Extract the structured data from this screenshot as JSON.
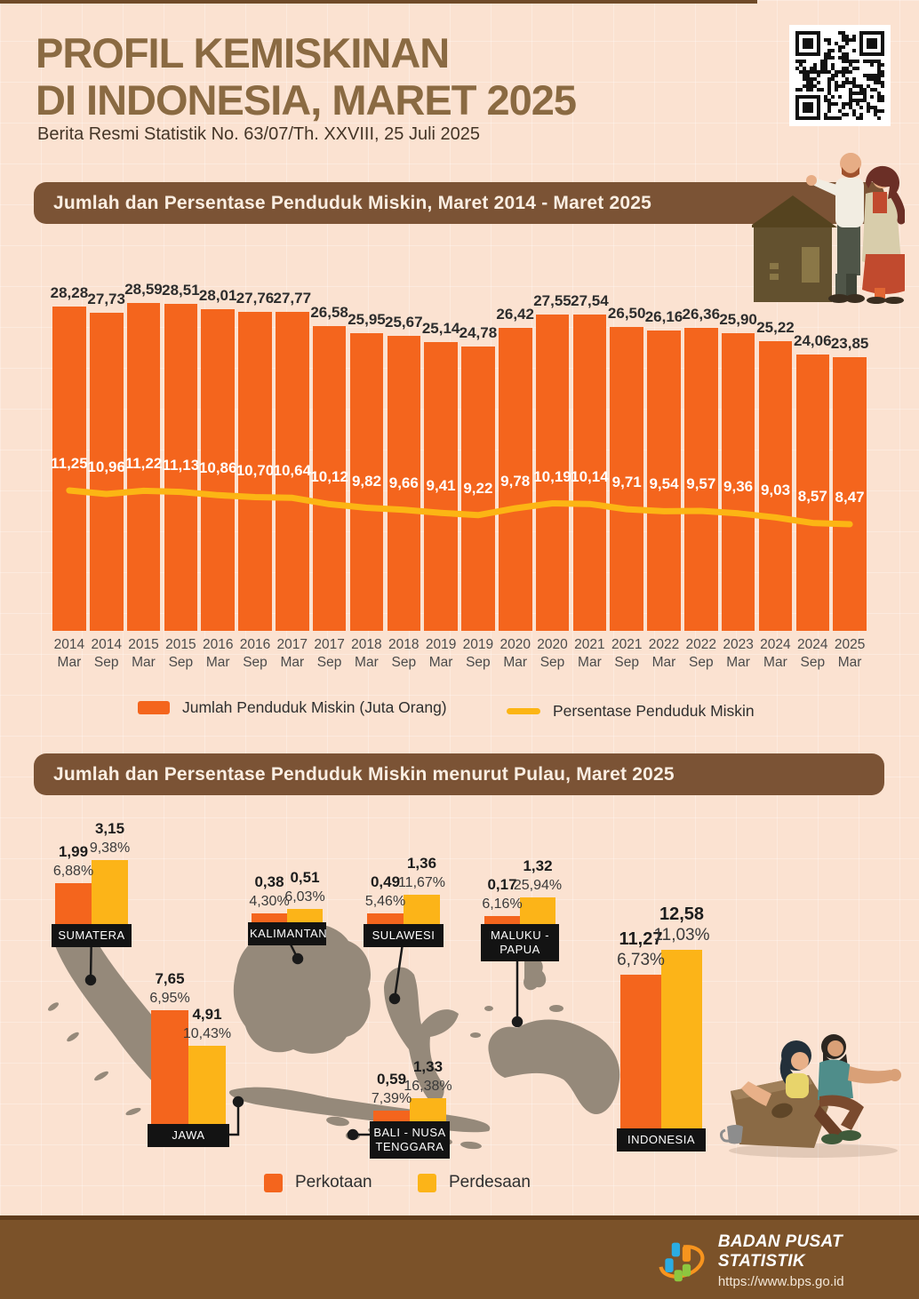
{
  "page": {
    "title_line1": "PROFIL KEMISKINAN",
    "title_line2": "DI INDONESIA, MARET 2025",
    "subtitle": "Berita Resmi Statistik No. 63/07/Th. XXVIII, 25 Juli 2025"
  },
  "colors": {
    "background": "#fbe2d1",
    "accent_orange": "#f4651d",
    "accent_yellow": "#fcb418",
    "header_brown": "#7b5335",
    "title_brown": "#8a6a42",
    "map_gray": "#95897a",
    "footer_brown": "#7b5229",
    "label_box_black": "#131313"
  },
  "section1": {
    "header": "Jumlah dan Persentase Penduduk Miskin, Maret 2014 - Maret 2025",
    "legend": [
      {
        "label": "Jumlah Penduduk Miskin (Juta Orang)",
        "color": "#f4651d",
        "type": "bar"
      },
      {
        "label": "Persentase Penduduk Miskin",
        "color": "#fcb514",
        "type": "line"
      }
    ]
  },
  "section2": {
    "header": "Jumlah dan Persentase Penduduk Miskin menurut Pulau, Maret 2025",
    "legend": [
      {
        "label": "Perkotaan",
        "color": "#f4651d"
      },
      {
        "label": "Perdesaan",
        "color": "#fcb418"
      }
    ]
  },
  "chart_data": [
    {
      "type": "bar",
      "title": "Jumlah dan Persentase Penduduk Miskin, Maret 2014 - Maret 2025",
      "categories": [
        [
          "2014",
          "Mar"
        ],
        [
          "2014",
          "Sep"
        ],
        [
          "2015",
          "Mar"
        ],
        [
          "2015",
          "Sep"
        ],
        [
          "2016",
          "Mar"
        ],
        [
          "2016",
          "Sep"
        ],
        [
          "2017",
          "Mar"
        ],
        [
          "2017",
          "Sep"
        ],
        [
          "2018",
          "Mar"
        ],
        [
          "2018",
          "Sep"
        ],
        [
          "2019",
          "Mar"
        ],
        [
          "2019",
          "Sep"
        ],
        [
          "2020",
          "Mar"
        ],
        [
          "2020",
          "Sep"
        ],
        [
          "2021",
          "Mar"
        ],
        [
          "2021",
          "Sep"
        ],
        [
          "2022",
          "Mar"
        ],
        [
          "2022",
          "Sep"
        ],
        [
          "2023",
          "Mar"
        ],
        [
          "2024",
          "Mar"
        ],
        [
          "2024",
          "Sep"
        ],
        [
          "2025",
          "Mar"
        ]
      ],
      "series": [
        {
          "name": "Jumlah Penduduk Miskin (Juta Orang)",
          "type": "bar",
          "values": [
            28.28,
            27.73,
            28.59,
            28.51,
            28.01,
            27.76,
            27.77,
            26.58,
            25.95,
            25.67,
            25.14,
            24.78,
            26.42,
            27.55,
            27.54,
            26.5,
            26.16,
            26.36,
            25.9,
            25.22,
            24.06,
            23.85
          ],
          "labels": [
            "28,28",
            "27,73",
            "28,59",
            "28,51",
            "28,01",
            "27,76",
            "27,77",
            "26,58",
            "25,95",
            "25,67",
            "25,14",
            "24,78",
            "26,42",
            "27,55",
            "27,54",
            "26,50",
            "26,16",
            "26,36",
            "25,90",
            "25,22",
            "24,06",
            "23,85"
          ]
        },
        {
          "name": "Persentase Penduduk Miskin",
          "type": "line",
          "values": [
            11.25,
            10.96,
            11.22,
            11.13,
            10.86,
            10.7,
            10.64,
            10.12,
            9.82,
            9.66,
            9.41,
            9.22,
            9.78,
            10.19,
            10.14,
            9.71,
            9.54,
            9.57,
            9.36,
            9.03,
            8.57,
            8.47
          ],
          "labels": [
            "11,25",
            "10,96",
            "11,22",
            "11,13",
            "10,86",
            "10,70",
            "10,64",
            "10,12",
            "9,82",
            "9,66",
            "9,41",
            "9,22",
            "9,78",
            "10,19",
            "10,14",
            "9,71",
            "9,54",
            "9,57",
            "9,36",
            "9,03",
            "8,57",
            "8,47"
          ]
        }
      ],
      "ylim": [
        0,
        29.4
      ],
      "grid": false,
      "legend_position": "bottom"
    },
    {
      "type": "bar",
      "title": "Jumlah dan Persentase Penduduk Miskin menurut Pulau, Maret 2025",
      "categories": [
        "SUMATERA",
        "KALIMANTAN",
        "SULAWESI",
        "MALUKU - PAPUA",
        "JAWA",
        "BALI - NUSA TENGGARA",
        "INDONESIA"
      ],
      "series": [
        {
          "name": "Perkotaan jumlah (juta)",
          "values": [
            1.99,
            0.38,
            0.49,
            0.17,
            7.65,
            0.59,
            11.27
          ]
        },
        {
          "name": "Perkotaan persentase",
          "values": [
            "6,88%",
            "4,30%",
            "5,46%",
            "6,16%",
            "6,95%",
            "7,39%",
            "6,73%"
          ]
        },
        {
          "name": "Perdesaan jumlah (juta)",
          "values": [
            3.15,
            0.51,
            1.36,
            1.32,
            4.91,
            1.33,
            12.58
          ]
        },
        {
          "name": "Perdesaan persentase",
          "values": [
            "9,38%",
            "6,03%",
            "11,67%",
            "25,94%",
            "10,43%",
            "16,38%",
            "11,03%"
          ]
        }
      ],
      "legend_position": "bottom"
    }
  ],
  "map": {
    "islands": [
      {
        "id": "sumatera",
        "name_lines": [
          "SUMATERA"
        ],
        "urban": {
          "value": "1,99",
          "pct": "6,88%"
        },
        "rural": {
          "value": "3,15",
          "pct": "9,38%"
        }
      },
      {
        "id": "kalimantan",
        "name_lines": [
          "KALIMANTAN"
        ],
        "urban": {
          "value": "0,38",
          "pct": "4,30%"
        },
        "rural": {
          "value": "0,51",
          "pct": "6,03%"
        }
      },
      {
        "id": "sulawesi",
        "name_lines": [
          "SULAWESI"
        ],
        "urban": {
          "value": "0,49",
          "pct": "5,46%"
        },
        "rural": {
          "value": "1,36",
          "pct": "11,67%"
        }
      },
      {
        "id": "maluku-papua",
        "name_lines": [
          "MALUKU -",
          "PAPUA"
        ],
        "urban": {
          "value": "0,17",
          "pct": "6,16%"
        },
        "rural": {
          "value": "1,32",
          "pct": "25,94%"
        }
      },
      {
        "id": "jawa",
        "name_lines": [
          "JAWA"
        ],
        "urban": {
          "value": "7,65",
          "pct": "6,95%"
        },
        "rural": {
          "value": "4,91",
          "pct": "10,43%"
        }
      },
      {
        "id": "bali-nusa-tenggara",
        "name_lines": [
          "BALI - NUSA",
          "TENGGARA"
        ],
        "urban": {
          "value": "0,59",
          "pct": "7,39%"
        },
        "rural": {
          "value": "1,33",
          "pct": "16,38%"
        }
      },
      {
        "id": "indonesia",
        "name_lines": [
          "INDONESIA"
        ],
        "urban": {
          "value": "11,27",
          "pct": "6,73%"
        },
        "rural": {
          "value": "12,58",
          "pct": "11,03%"
        }
      }
    ]
  },
  "footer": {
    "org": "BADAN PUSAT STATISTIK",
    "url": "https://www.bps.go.id"
  }
}
